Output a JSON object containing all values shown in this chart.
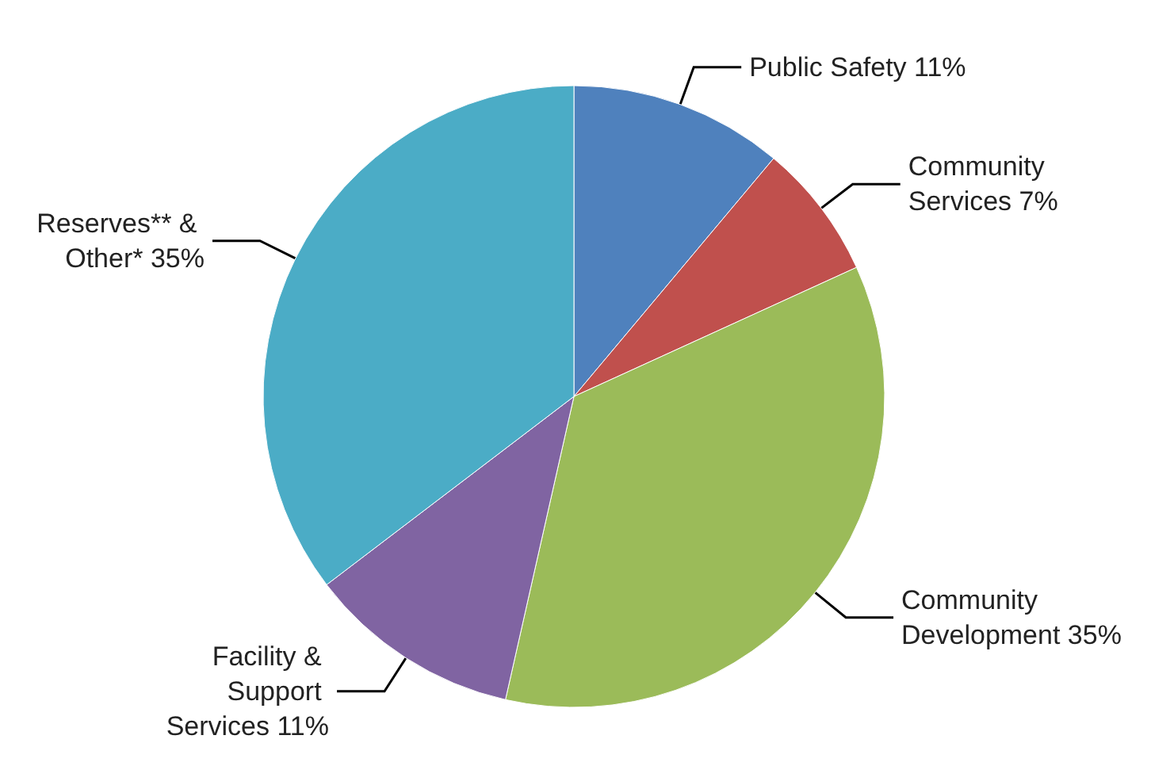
{
  "chart_data": {
    "type": "pie",
    "categories": [
      "Public Safety",
      "Community Services",
      "Community Development",
      "Facility & Support Services",
      "Reserves** & Other*"
    ],
    "values": [
      11,
      7,
      35,
      11,
      35
    ],
    "value_labels": [
      "11%",
      "7%",
      "35%",
      "11%",
      "35%"
    ],
    "colors": [
      "#4f81bd",
      "#c0504d",
      "#9bbb59",
      "#8064a2",
      "#4bacc6"
    ]
  }
}
